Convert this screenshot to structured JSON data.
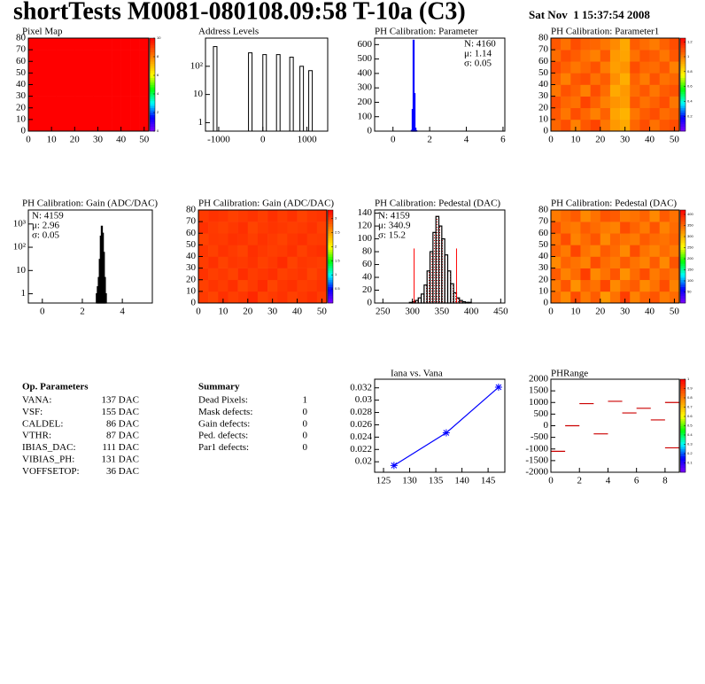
{
  "header": {
    "title": "shortTests M0081-080108.09:58 T-10a (C3)",
    "date": "Sat Nov  1 15:37:54 2008"
  },
  "parameters": {
    "title": "Op. Parameters",
    "rows": [
      {
        "label": "VANA:",
        "value": "137 DAC"
      },
      {
        "label": "VSF:",
        "value": "155 DAC"
      },
      {
        "label": "CALDEL:",
        "value": "86 DAC"
      },
      {
        "label": "VTHR:",
        "value": "87 DAC"
      },
      {
        "label": "IBIAS_DAC:",
        "value": "111 DAC"
      },
      {
        "label": "VIBIAS_PH:",
        "value": "131 DAC"
      },
      {
        "label": "VOFFSETOP:",
        "value": "36 DAC"
      }
    ]
  },
  "summary": {
    "title": "Summary",
    "rows": [
      {
        "label": "Dead Pixels:",
        "value": 1,
        "color": "#000000"
      },
      {
        "label": "Mask defects:",
        "value": 0,
        "color": "#000000"
      },
      {
        "label": "Gain defects:",
        "value": 0,
        "color": "#000000"
      },
      {
        "label": "Ped. defects:",
        "value": 0,
        "color": "#ff0000"
      },
      {
        "label": "Par1 defects:",
        "value": 0,
        "color": "#0000ff"
      }
    ]
  },
  "chart_data": [
    {
      "type": "heatmap",
      "title": "Pixel Map",
      "xlim": [
        0,
        52
      ],
      "ylim": [
        0,
        80
      ],
      "xticks": [
        0,
        10,
        20,
        30,
        40,
        50
      ],
      "yticks": [
        0,
        10,
        20,
        30,
        40,
        50,
        60,
        70,
        80
      ],
      "zlim": [
        0,
        10
      ],
      "zticks": [
        0,
        2,
        4,
        6,
        8,
        10
      ],
      "values": [
        [
          10,
          10,
          10,
          10,
          10,
          10,
          10,
          10,
          10,
          10,
          10,
          10,
          10
        ],
        [
          10,
          10,
          10,
          10,
          10,
          10,
          10,
          10,
          10,
          10,
          10,
          10,
          10
        ],
        [
          10,
          10,
          10,
          10,
          10,
          10,
          10,
          10,
          10,
          10,
          10,
          10,
          10
        ],
        [
          10,
          10,
          10,
          10,
          10,
          10,
          10,
          10,
          10,
          10,
          10,
          10,
          10
        ],
        [
          10,
          10,
          10,
          10,
          10,
          10,
          10,
          10,
          10,
          10,
          10,
          10,
          10
        ],
        [
          10,
          10,
          10,
          10,
          10,
          10,
          10,
          10,
          10,
          10,
          10,
          10,
          10
        ],
        [
          10,
          10,
          10,
          10,
          10,
          10,
          10,
          10,
          10,
          10,
          10,
          10,
          10
        ],
        [
          10,
          10,
          10,
          10,
          10,
          10,
          10,
          10,
          10,
          10,
          10,
          10,
          10
        ]
      ]
    },
    {
      "type": "spikes",
      "title": "Address Levels",
      "log_y": true,
      "color": "#000000",
      "xlim": [
        -1300,
        1470
      ],
      "xticks": [
        -1000,
        0,
        1000
      ],
      "ylim": [
        0.5,
        1000
      ],
      "yticks": [
        1,
        10,
        {
          "value": 100,
          "label": "10²"
        }
      ],
      "x": [
        -1080,
        -285,
        40,
        350,
        650,
        880,
        1080
      ],
      "values": [
        500,
        300,
        260,
        260,
        210,
        100,
        70
      ]
    },
    {
      "type": "histogram",
      "title": "PH Calibration: Parameter",
      "color": "#0000ff",
      "xlim": [
        -1,
        6.1
      ],
      "xticks": [
        0,
        2,
        4,
        6
      ],
      "ylim": [
        0,
        645
      ],
      "yticks": [
        0,
        100,
        200,
        300,
        400,
        500,
        600
      ],
      "bins": [
        1.0,
        1.05,
        1.1,
        1.15,
        1.2,
        1.25,
        1.3
      ],
      "values": [
        5,
        150,
        630,
        260,
        20,
        3
      ],
      "stats_corner": "top-right",
      "stats": [
        {
          "text": "N: 4160",
          "color": "#0000ff"
        },
        {
          "text": "μ: 1.14",
          "color": "#0000ff"
        },
        {
          "text": "σ: 0.05",
          "color": "#0000ff"
        }
      ]
    },
    {
      "type": "heatmap",
      "title": "PH Calibration: Parameter1",
      "xlim": [
        0,
        52
      ],
      "ylim": [
        0,
        80
      ],
      "xticks": [
        0,
        10,
        20,
        30,
        40,
        50
      ],
      "yticks": [
        0,
        10,
        20,
        30,
        40,
        50,
        60,
        70,
        80
      ],
      "zlim": [
        0,
        1.25
      ],
      "zticks": [
        0.2,
        0.4,
        0.6,
        0.8,
        1,
        1.2
      ],
      "values": [
        [
          1.05,
          1.1,
          1.0,
          1.08,
          1.12,
          1.02,
          0.95,
          0.92,
          1.05,
          1.1,
          1.03,
          1.08,
          1.1
        ],
        [
          1.08,
          1.02,
          1.1,
          1.05,
          1.0,
          1.06,
          0.93,
          0.9,
          1.02,
          1.07,
          1.1,
          1.04,
          1.06
        ],
        [
          1.1,
          1.05,
          1.03,
          1.12,
          1.06,
          1.0,
          0.96,
          0.94,
          1.08,
          1.03,
          1.06,
          1.1,
          1.02
        ],
        [
          1.02,
          1.09,
          1.06,
          1.0,
          1.1,
          1.04,
          0.92,
          0.95,
          1.04,
          1.08,
          1.02,
          1.07,
          1.09
        ],
        [
          1.06,
          1.0,
          1.08,
          1.1,
          1.03,
          1.07,
          0.97,
          0.91,
          1.06,
          1.01,
          1.09,
          1.03,
          1.05
        ],
        [
          1.1,
          1.06,
          1.02,
          1.05,
          1.09,
          1.01,
          0.94,
          0.96,
          1.1,
          1.05,
          1.04,
          1.08,
          1.0
        ],
        [
          1.04,
          1.1,
          1.07,
          1.03,
          1.0,
          1.08,
          0.95,
          0.93,
          1.03,
          1.09,
          1.07,
          1.02,
          1.08
        ],
        [
          1.08,
          1.03,
          1.1,
          1.06,
          1.05,
          1.02,
          0.98,
          0.92,
          1.07,
          1.04,
          1.01,
          1.06,
          1.1
        ]
      ]
    },
    {
      "type": "histogram",
      "title": "PH Calibration: Gain (ADC/DAC)",
      "color": "#000000",
      "log_y": true,
      "xlim": [
        -0.7,
        5.5
      ],
      "xticks": [
        0,
        2,
        4
      ],
      "ylim": [
        0.4,
        4000
      ],
      "yticks": [
        1,
        10,
        {
          "value": 100,
          "label": "10²"
        },
        {
          "value": 1000,
          "label": "10³"
        }
      ],
      "bins": [
        2.7,
        2.75,
        2.8,
        2.85,
        2.9,
        2.95,
        3.0,
        3.05,
        3.1,
        3.15,
        3.2
      ],
      "values": [
        1,
        2,
        5,
        30,
        300,
        800,
        400,
        60,
        5,
        1
      ],
      "stats_corner": "top-left",
      "stats": [
        {
          "text": "N: 4159",
          "color": "#000000"
        },
        {
          "text": "μ: 2.96",
          "color": "#000000"
        },
        {
          "text": "σ: 0.05",
          "color": "#000000"
        }
      ]
    },
    {
      "type": "heatmap",
      "title": "PH Calibration: Gain (ADC/DAC)",
      "xlim": [
        0,
        52
      ],
      "ylim": [
        0,
        80
      ],
      "xticks": [
        0,
        10,
        20,
        30,
        40,
        50
      ],
      "yticks": [
        0,
        10,
        20,
        30,
        40,
        50,
        60,
        70,
        80
      ],
      "zlim": [
        0,
        3.3
      ],
      "zticks": [
        0.5,
        1,
        1.5,
        2,
        2.5,
        3
      ],
      "values": [
        [
          3.0,
          2.95,
          3.05,
          2.98,
          3.02,
          3.1,
          2.96,
          3.0,
          3.04,
          2.97,
          3.01,
          3.06,
          2.99
        ],
        [
          2.97,
          3.03,
          2.99,
          3.06,
          2.94,
          3.0,
          3.08,
          2.95,
          3.02,
          3.05,
          2.98,
          3.0,
          3.04
        ],
        [
          3.04,
          2.98,
          3.01,
          2.96,
          3.07,
          2.99,
          3.02,
          3.06,
          2.97,
          3.0,
          3.03,
          2.95,
          3.01
        ],
        [
          2.99,
          3.05,
          2.96,
          3.02,
          3.0,
          3.04,
          2.97,
          3.01,
          3.08,
          2.96,
          3.02,
          3.0,
          2.98
        ],
        [
          3.02,
          2.97,
          3.04,
          3.0,
          2.96,
          3.06,
          3.01,
          2.98,
          3.0,
          3.05,
          2.97,
          3.03,
          3.06
        ],
        [
          2.96,
          3.01,
          3.0,
          3.05,
          3.03,
          2.98,
          3.04,
          3.0,
          2.96,
          3.02,
          3.06,
          2.99,
          3.0
        ],
        [
          3.05,
          3.0,
          2.97,
          3.01,
          3.06,
          2.95,
          3.0,
          3.03,
          3.01,
          2.98,
          3.0,
          3.04,
          2.97
        ],
        [
          3.0,
          3.04,
          3.02,
          2.97,
          3.0,
          3.03,
          2.98,
          3.05,
          2.99,
          3.04,
          2.96,
          3.01,
          3.03
        ]
      ]
    },
    {
      "type": "histogram",
      "title": "PH Calibration: Pedestal (DAC)",
      "color": "#000000",
      "fill": "dotted",
      "fill_color": "#cc0000",
      "xlim": [
        236,
        457
      ],
      "xticks": [
        250,
        300,
        350,
        400,
        450
      ],
      "ylim": [
        0,
        145
      ],
      "yticks": [
        0,
        20,
        40,
        60,
        80,
        100,
        120,
        140
      ],
      "bins": [
        295,
        300,
        305,
        310,
        315,
        320,
        325,
        330,
        335,
        340,
        345,
        350,
        355,
        360,
        365,
        370,
        375,
        380,
        385,
        390,
        395,
        400,
        405
      ],
      "values": [
        1,
        2,
        4,
        8,
        14,
        28,
        50,
        80,
        110,
        135,
        120,
        100,
        75,
        50,
        30,
        16,
        8,
        4,
        2,
        1,
        1,
        0
      ],
      "markers": [
        {
          "x": 303,
          "y": 85
        },
        {
          "x": 375,
          "y": 85
        }
      ],
      "marker_color": "#ff0000",
      "stats_corner": "top-left",
      "stats": [
        {
          "text": "N: 4159",
          "color": "#000000"
        },
        {
          "text": "μ: 340.9",
          "color": "#ff0000"
        },
        {
          "text": "σ: 15.2",
          "color": "#ff0000"
        }
      ]
    },
    {
      "type": "heatmap",
      "title": "PH Calibration: Pedestal (DAC)",
      "xlim": [
        0,
        52
      ],
      "ylim": [
        0,
        80
      ],
      "xticks": [
        0,
        10,
        20,
        30,
        40,
        50
      ],
      "yticks": [
        0,
        10,
        20,
        30,
        40,
        50,
        60,
        70,
        80
      ],
      "zlim": [
        0,
        420
      ],
      "zticks": [
        50,
        100,
        150,
        200,
        250,
        300,
        350,
        400
      ],
      "values": [
        [
          350,
          330,
          370,
          340,
          360,
          320,
          345,
          380,
          335,
          355,
          365,
          340,
          350
        ],
        [
          340,
          365,
          325,
          355,
          345,
          375,
          330,
          350,
          360,
          330,
          345,
          370,
          335
        ],
        [
          360,
          335,
          350,
          380,
          330,
          345,
          365,
          325,
          350,
          370,
          340,
          355,
          345
        ],
        [
          330,
          355,
          345,
          335,
          370,
          350,
          340,
          360,
          345,
          335,
          360,
          330,
          365
        ],
        [
          355,
          340,
          375,
          345,
          335,
          360,
          350,
          330,
          370,
          345,
          335,
          350,
          340
        ],
        [
          345,
          370,
          335,
          350,
          365,
          330,
          355,
          345,
          340,
          360,
          350,
          345,
          355
        ],
        [
          365,
          345,
          340,
          360,
          350,
          340,
          335,
          370,
          355,
          340,
          365,
          335,
          350
        ],
        [
          340,
          350,
          360,
          330,
          345,
          365,
          360,
          340,
          345,
          355,
          330,
          360,
          345
        ]
      ]
    },
    {
      "type": "line",
      "title": "Iana vs. Vana",
      "color": "#0000ff",
      "xlim": [
        123.3,
        148.2
      ],
      "xticks": [
        125,
        130,
        135,
        140,
        145
      ],
      "ylim": [
        0.0183,
        0.0334
      ],
      "yticks": [
        0.02,
        0.022,
        0.024,
        0.026,
        0.028,
        0.03,
        0.032
      ],
      "x": [
        127,
        137,
        147
      ],
      "values": [
        0.0194,
        0.0247,
        0.0321
      ]
    },
    {
      "type": "segments",
      "title": "PHRange",
      "color": "#cc0000",
      "xlim": [
        0,
        9
      ],
      "xticks": [
        0,
        2,
        4,
        6,
        8
      ],
      "ylim": [
        -2000,
        2000
      ],
      "yticks": [
        -2000,
        -1500,
        -1000,
        -500,
        0,
        500,
        1000,
        1500,
        2000
      ],
      "zlim": [
        0,
        1
      ],
      "zticks": [
        0.1,
        0.2,
        0.3,
        0.4,
        0.5,
        0.6,
        0.7,
        0.8,
        0.9,
        1
      ],
      "x": [
        0,
        1,
        2,
        3,
        4,
        5,
        6,
        7,
        8,
        8
      ],
      "values": [
        -1100,
        0,
        950,
        -350,
        1050,
        550,
        750,
        250,
        1000,
        -950
      ]
    }
  ]
}
